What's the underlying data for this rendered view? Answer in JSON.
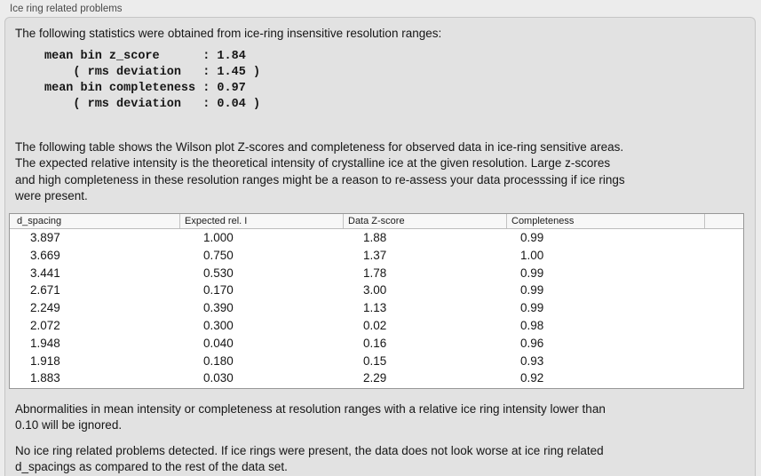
{
  "window": {
    "title": "Ice ring related problems"
  },
  "panel": {
    "intro": "The following statistics were obtained from ice-ring insensitive resolution ranges:",
    "stats_text": "mean bin z_score      : 1.84\n    ( rms deviation   : 1.45 )\nmean bin completeness : 0.97\n    ( rms deviation   : 0.04 )",
    "description_lines": [
      "The following table shows the Wilson plot Z-scores and completeness for observed data in ice-ring sensitive areas.",
      "The expected relative intensity is the theoretical intensity of crystalline ice at the given resolution. Large z-scores",
      "and high completeness in these resolution ranges might be a reason to re-assess your data processsing if ice rings",
      "were present."
    ],
    "table": {
      "headers": [
        "d_spacing",
        "Expected rel. I",
        "Data Z-score",
        "Completeness"
      ],
      "rows": [
        [
          "3.897",
          "1.000",
          "1.88",
          "0.99"
        ],
        [
          "3.669",
          "0.750",
          "1.37",
          "1.00"
        ],
        [
          "3.441",
          "0.530",
          "1.78",
          "0.99"
        ],
        [
          "2.671",
          "0.170",
          "3.00",
          "0.99"
        ],
        [
          "2.249",
          "0.390",
          "1.13",
          "0.99"
        ],
        [
          "2.072",
          "0.300",
          "0.02",
          "0.98"
        ],
        [
          "1.948",
          "0.040",
          "0.16",
          "0.96"
        ],
        [
          "1.918",
          "0.180",
          "0.15",
          "0.93"
        ],
        [
          "1.883",
          "0.030",
          "2.29",
          "0.92"
        ]
      ]
    },
    "note_lines": [
      "Abnormalities in mean intensity or completeness at resolution ranges with a relative ice ring intensity lower than",
      "0.10 will be ignored."
    ],
    "conclusion_lines": [
      "No ice ring related problems detected. If ice rings were present, the data does not look worse at ice ring related",
      "d_spacings as compared to the rest of the data set."
    ]
  },
  "colors": {
    "page_bg": "#ececec",
    "panel_bg": "#e2e2e2",
    "panel_border": "#c5c5c5",
    "table_border": "#979797",
    "header_bg": "#f7f7f7",
    "row_bg": "#ffffff",
    "text": "#161616",
    "title": "#4a4a4a"
  }
}
